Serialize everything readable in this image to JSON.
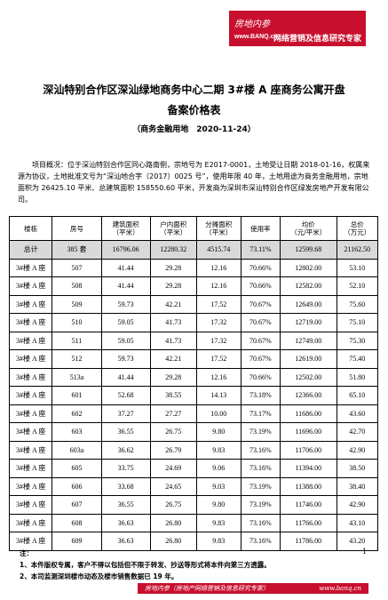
{
  "header": {
    "brand": "房地内参",
    "site": "www.BANQ.cn",
    "slogan": "网络营销及信息研究专家"
  },
  "title": {
    "line1": "深汕特别合作区深汕绿地商务中心二期 3#楼 A 座商务公寓开盘",
    "line2": "备案价格表",
    "subtitle": "（商务金融用地　2020-11-24）"
  },
  "overview": "项目概况：位于深汕特别合作区同心路南侧，宗地号为 E2017-0001，土地受让日期 2018-01-16，权属来源为协议，土地批准文号为“深汕地合字（2017）0025 号”，使用年限 40 年，土地用途为商务金融用地，宗地面积为 26425.10 平米、总建筑面积 158550.60 平米，开发商为深圳市深汕特别合作区绿发房地产开发有限公司。",
  "table": {
    "header": [
      "楼栋",
      "房号",
      "建筑面积\n（平米）",
      "户内面积\n（平米）",
      "分摊面积\n（平米）",
      "使用率",
      "均价\n（元/平米）",
      "总价\n（万元）"
    ],
    "total": [
      "总计",
      "385 套",
      "16796.06",
      "12280.32",
      "4515.74",
      "73.11%",
      "12599.68",
      "21162.50"
    ],
    "rows": [
      [
        "3#楼 A 座",
        "507",
        "41.44",
        "29.28",
        "12.16",
        "70.66%",
        "12802.00",
        "53.10"
      ],
      [
        "3#楼 A 座",
        "508",
        "41.44",
        "29.28",
        "12.16",
        "70.66%",
        "12582.00",
        "52.10"
      ],
      [
        "3#楼 A 座",
        "509",
        "59.73",
        "42.21",
        "17.52",
        "70.67%",
        "12649.00",
        "75.60"
      ],
      [
        "3#楼 A 座",
        "510",
        "59.05",
        "41.73",
        "17.32",
        "70.67%",
        "12719.00",
        "75.10"
      ],
      [
        "3#楼 A 座",
        "511",
        "59.05",
        "41.73",
        "17.32",
        "70.67%",
        "12749.00",
        "75.30"
      ],
      [
        "3#楼 A 座",
        "512",
        "59.73",
        "42.21",
        "17.52",
        "70.67%",
        "12619.00",
        "75.40"
      ],
      [
        "3#楼 A 座",
        "513a",
        "41.44",
        "29.28",
        "12.16",
        "70.66%",
        "12502.00",
        "51.80"
      ],
      [
        "3#楼 A 座",
        "601",
        "52.68",
        "38.55",
        "14.13",
        "73.18%",
        "12366.00",
        "65.10"
      ],
      [
        "3#楼 A 座",
        "602",
        "37.27",
        "27.27",
        "10.00",
        "73.17%",
        "11686.00",
        "43.60"
      ],
      [
        "3#楼 A 座",
        "603",
        "36.55",
        "26.75",
        "9.80",
        "73.19%",
        "11696.00",
        "42.70"
      ],
      [
        "3#楼 A 座",
        "603a",
        "36.62",
        "26.79",
        "9.83",
        "73.16%",
        "11706.00",
        "42.90"
      ],
      [
        "3#楼 A 座",
        "605",
        "33.75",
        "24.69",
        "9.06",
        "73.16%",
        "11394.00",
        "38.50"
      ],
      [
        "3#楼 A 座",
        "606",
        "33.68",
        "24.65",
        "9.03",
        "73.19%",
        "11388.00",
        "38.40"
      ],
      [
        "3#楼 A 座",
        "607",
        "36.55",
        "26.75",
        "9.80",
        "73.19%",
        "11746.00",
        "42.90"
      ],
      [
        "3#楼 A 座",
        "608",
        "36.63",
        "26.80",
        "9.83",
        "73.16%",
        "11766.00",
        "43.10"
      ],
      [
        "3#楼 A 座",
        "609",
        "36.63",
        "26.80",
        "9.83",
        "73.16%",
        "11786.00",
        "43.20"
      ]
    ]
  },
  "notes": {
    "label": "注：",
    "items": [
      "1、本件版权专属，客户不得以包括但不限于转发、抄送等形式将本件向第三方透露。",
      "2、本司监测深圳楼市动态及楼市销售数据已 19 年。"
    ]
  },
  "page_number": "1",
  "footer": {
    "text": "房地内参（房地产网络营销及信息研究专家）",
    "site": "www.banq.cn"
  }
}
